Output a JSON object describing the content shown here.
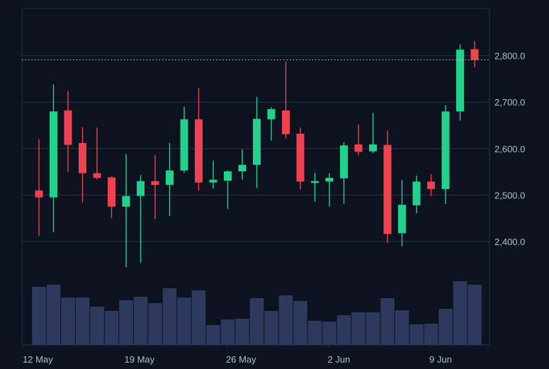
{
  "colors": {
    "background": "#0c1220",
    "grid": "#2a3444",
    "axis_text": "#b4bccb",
    "up": "#22d18b",
    "down": "#f0414e",
    "volume": "#2d3a5e",
    "price_line": "#c7ccd6"
  },
  "chart_data": {
    "type": "candlestick",
    "title": "",
    "xlabel": "",
    "ylabel": "",
    "y_ticks": [
      "2,400.0",
      "2,500.0",
      "2,600.0",
      "2,700.0",
      "2,800.0"
    ],
    "y_tick_values": [
      2400,
      2500,
      2600,
      2700,
      2800
    ],
    "ylim": [
      2310,
      2900
    ],
    "x_tick_labels": [
      "12 May",
      "19 May",
      "26 May",
      "2 Jun",
      "9 Jun"
    ],
    "x_tick_indices": [
      0,
      7,
      14,
      21,
      28
    ],
    "current_price": 2791,
    "grid": true,
    "candles": [
      {
        "date": "12 May",
        "open": 2510,
        "high": 2620,
        "low": 2412,
        "close": 2495
      },
      {
        "date": "13 May",
        "open": 2495,
        "high": 2738,
        "low": 2420,
        "close": 2680
      },
      {
        "date": "14 May",
        "open": 2682,
        "high": 2724,
        "low": 2550,
        "close": 2608
      },
      {
        "date": "15 May",
        "open": 2612,
        "high": 2646,
        "low": 2484,
        "close": 2547
      },
      {
        "date": "16 May",
        "open": 2547,
        "high": 2645,
        "low": 2533,
        "close": 2537
      },
      {
        "date": "17 May",
        "open": 2538,
        "high": 2540,
        "low": 2450,
        "close": 2475
      },
      {
        "date": "18 May",
        "open": 2475,
        "high": 2588,
        "low": 2345,
        "close": 2498
      },
      {
        "date": "19 May",
        "open": 2498,
        "high": 2543,
        "low": 2354,
        "close": 2530
      },
      {
        "date": "20 May",
        "open": 2530,
        "high": 2586,
        "low": 2448,
        "close": 2522
      },
      {
        "date": "21 May",
        "open": 2522,
        "high": 2612,
        "low": 2455,
        "close": 2553
      },
      {
        "date": "22 May",
        "open": 2553,
        "high": 2690,
        "low": 2548,
        "close": 2663
      },
      {
        "date": "23 May",
        "open": 2663,
        "high": 2730,
        "low": 2510,
        "close": 2527
      },
      {
        "date": "24 May",
        "open": 2527,
        "high": 2574,
        "low": 2514,
        "close": 2533
      },
      {
        "date": "25 May",
        "open": 2531,
        "high": 2553,
        "low": 2470,
        "close": 2551
      },
      {
        "date": "26 May",
        "open": 2551,
        "high": 2598,
        "low": 2533,
        "close": 2565
      },
      {
        "date": "27 May",
        "open": 2565,
        "high": 2711,
        "low": 2515,
        "close": 2664
      },
      {
        "date": "28 May",
        "open": 2663,
        "high": 2689,
        "low": 2617,
        "close": 2685
      },
      {
        "date": "29 May",
        "open": 2682,
        "high": 2788,
        "low": 2622,
        "close": 2631
      },
      {
        "date": "30 May",
        "open": 2632,
        "high": 2645,
        "low": 2512,
        "close": 2529
      },
      {
        "date": "31 May",
        "open": 2530,
        "high": 2548,
        "low": 2486,
        "close": 2530
      },
      {
        "date": "1 Jun",
        "open": 2529,
        "high": 2547,
        "low": 2475,
        "close": 2537
      },
      {
        "date": "2 Jun",
        "open": 2536,
        "high": 2614,
        "low": 2481,
        "close": 2607
      },
      {
        "date": "3 Jun",
        "open": 2609,
        "high": 2652,
        "low": 2586,
        "close": 2593
      },
      {
        "date": "4 Jun",
        "open": 2594,
        "high": 2677,
        "low": 2590,
        "close": 2609
      },
      {
        "date": "5 Jun",
        "open": 2608,
        "high": 2639,
        "low": 2397,
        "close": 2416
      },
      {
        "date": "6 Jun",
        "open": 2418,
        "high": 2532,
        "low": 2390,
        "close": 2479
      },
      {
        "date": "7 Jun",
        "open": 2478,
        "high": 2542,
        "low": 2461,
        "close": 2529
      },
      {
        "date": "8 Jun",
        "open": 2529,
        "high": 2545,
        "low": 2498,
        "close": 2513
      },
      {
        "date": "9 Jun",
        "open": 2513,
        "high": 2693,
        "low": 2481,
        "close": 2680
      },
      {
        "date": "10 Jun",
        "open": 2680,
        "high": 2824,
        "low": 2660,
        "close": 2813
      },
      {
        "date": "11 Jun",
        "open": 2814,
        "high": 2832,
        "low": 2775,
        "close": 2791
      }
    ],
    "volume": [
      82,
      85,
      67,
      67,
      54,
      48,
      63,
      68,
      59,
      80,
      67,
      77,
      28,
      36,
      37,
      66,
      48,
      70,
      62,
      34,
      33,
      42,
      46,
      46,
      66,
      49,
      29,
      30,
      51,
      90,
      85
    ]
  }
}
